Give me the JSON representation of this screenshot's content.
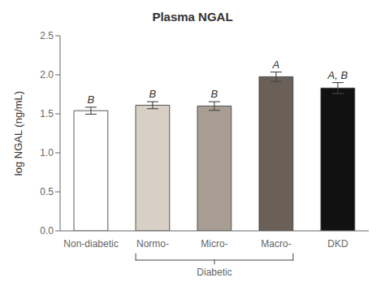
{
  "chart_data": {
    "type": "bar",
    "title": "Plasma NGAL",
    "y_label": "log NGAL (ng/mL)",
    "categories": [
      "Non-diabetic",
      "Normo-",
      "Micro-",
      "Macro-",
      "DKD"
    ],
    "values": [
      1.54,
      1.61,
      1.6,
      1.975,
      1.83
    ],
    "errors": [
      0.045,
      0.045,
      0.055,
      0.06,
      0.07
    ],
    "colors": [
      "#ffffff",
      "#d8cfc5",
      "#a89d93",
      "#6b6058",
      "#111111"
    ],
    "ylim": [
      0,
      2.5
    ],
    "yticks": [
      {
        "value": 0.0,
        "label": "0.0"
      },
      0.5,
      {
        "value": 1.0,
        "label": "1.0"
      },
      1.5,
      {
        "value": 2.0,
        "label": "2.0"
      },
      2.5
    ],
    "grid": false,
    "annotations": [
      {
        "text": "B",
        "category": "Non-diabetic"
      },
      {
        "text": "B",
        "category": "Normo-"
      },
      {
        "text": "B",
        "category": "Micro-"
      },
      {
        "text": "A",
        "category": "Macro-"
      },
      {
        "text": "A, B",
        "category": "DKD"
      },
      {
        "text": "Diabetic",
        "categories": [
          "Normo-",
          "Micro-",
          "Macro-"
        ]
      }
    ]
  }
}
